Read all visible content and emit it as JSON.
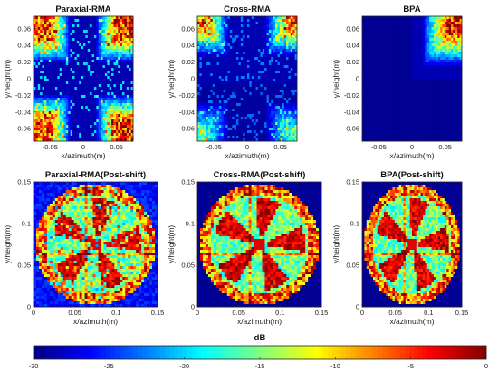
{
  "chart_data": [
    {
      "type": "heatmap",
      "title": "Paraxial-RMA",
      "xlabel": "x/azimuth(m)",
      "ylabel": "y/height(m)",
      "xlim": [
        -0.075,
        0.075
      ],
      "ylim": [
        -0.075,
        0.075
      ],
      "xticks": [
        "-0.05",
        "0",
        "0.05"
      ],
      "yticks": [
        "0.06",
        "0.04",
        "0.02",
        "0",
        "-0.02",
        "-0.04",
        "-0.06"
      ],
      "scene": "quadrants-spread"
    },
    {
      "type": "heatmap",
      "title": "Cross-RMA",
      "xlabel": "x/azimuth(m)",
      "ylabel": "y/height(m)",
      "xlim": [
        -0.075,
        0.075
      ],
      "ylim": [
        -0.075,
        0.075
      ],
      "xticks": [
        "-0.05",
        "0",
        "0.05"
      ],
      "yticks": [
        "0.06",
        "0.04",
        "0.02",
        "0",
        "-0.02",
        "-0.04",
        "-0.06"
      ],
      "scene": "quadrants-top"
    },
    {
      "type": "heatmap",
      "title": "BPA",
      "xlabel": "x/azimuth(m)",
      "ylabel": "y/height(m)",
      "xlim": [
        -0.075,
        0.075
      ],
      "ylim": [
        -0.075,
        0.075
      ],
      "xticks": [
        "-0.05",
        "0",
        "0.05"
      ],
      "yticks": [
        "0.06",
        "0.04",
        "0.02",
        "0",
        "-0.02",
        "-0.04",
        "-0.06"
      ],
      "scene": "corner"
    },
    {
      "type": "heatmap",
      "title": "Paraxial-RMA(Post-shift)",
      "xlabel": "x/azimuth(m)",
      "ylabel": "y/height(m)",
      "xlim": [
        0,
        0.15
      ],
      "ylim": [
        0,
        0.15
      ],
      "xticks": [
        "0",
        "0.05",
        "0.1",
        "0.15"
      ],
      "yticks": [
        "0.15",
        "0.1",
        "0.05",
        "0"
      ],
      "scene": "fan-noisy"
    },
    {
      "type": "heatmap",
      "title": "Cross-RMA(Post-shift)",
      "xlabel": "x/azimuth(m)",
      "ylabel": "y/height(m)",
      "xlim": [
        0,
        0.15
      ],
      "ylim": [
        0,
        0.15
      ],
      "xticks": [
        "0",
        "0.05",
        "0.1",
        "0.15"
      ],
      "yticks": [
        "0.15",
        "0.1",
        "0.05",
        "0"
      ],
      "scene": "fan"
    },
    {
      "type": "heatmap",
      "title": "BPA(Post-shift)",
      "xlabel": "x/azimuth(m)",
      "ylabel": "y/height(m)",
      "xlim": [
        0,
        0.15
      ],
      "ylim": [
        0,
        0.15
      ],
      "xticks": [
        "0",
        "0.05",
        "0.1",
        "0.15"
      ],
      "yticks": [
        "0.15",
        "0.1",
        "0.05",
        "0"
      ],
      "scene": "fan"
    }
  ],
  "colorbar": {
    "label": "dB",
    "range": [
      -30,
      0
    ],
    "ticks": [
      "-30",
      "-25",
      "-20",
      "-15",
      "-10",
      "-5",
      "0"
    ],
    "colormap": "jet"
  }
}
